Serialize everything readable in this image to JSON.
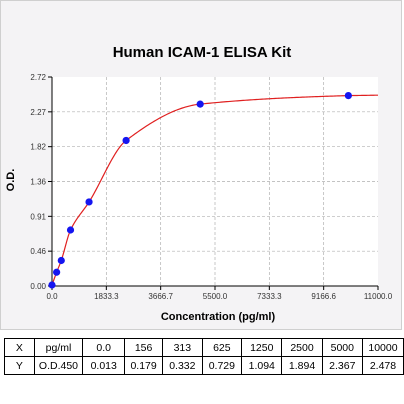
{
  "chart_data": {
    "type": "scatter",
    "title": "Human ICAM-1 ELISA Kit",
    "xlabel": "Concentration (pg/ml)",
    "ylabel": "O.D.",
    "xlim": [
      0,
      11000
    ],
    "ylim": [
      0,
      2.72
    ],
    "x_ticks": [
      "0.0",
      "1833.3",
      "3666.7",
      "5500.0",
      "7333.3",
      "9166.6",
      "11000.0"
    ],
    "y_ticks": [
      "0.00",
      "0.46",
      "0.91",
      "1.36",
      "1.82",
      "2.27",
      "2.72"
    ],
    "series": [
      {
        "x": [
          0,
          156,
          313,
          625,
          1250,
          2500,
          5000,
          10000
        ],
        "values": [
          0.013,
          0.179,
          0.332,
          0.729,
          1.094,
          1.894,
          2.367,
          2.478
        ]
      }
    ],
    "grid": true,
    "colors": {
      "points": "#1515f0",
      "curve": "#e02020",
      "grid": "#b0b0b0"
    }
  },
  "table": {
    "rows": [
      [
        "X",
        "pg/ml",
        "0.0",
        "156",
        "313",
        "625",
        "1250",
        "2500",
        "5000",
        "10000"
      ],
      [
        "Y",
        "O.D.450",
        "0.013",
        "0.179",
        "0.332",
        "0.729",
        "1.094",
        "1.894",
        "2.367",
        "2.478"
      ]
    ]
  }
}
